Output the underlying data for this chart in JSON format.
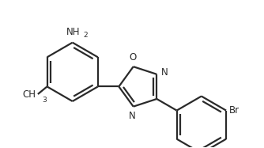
{
  "bg_color": "#ffffff",
  "bond_color": "#2a2a2a",
  "label_color": "#000000",
  "line_width": 1.6,
  "font_size_label": 8.5,
  "font_size_sub": 6.5,
  "figsize": [
    3.34,
    1.87
  ],
  "dpi": 100,
  "xlim": [
    0.0,
    5.2
  ],
  "ylim": [
    0.5,
    4.0
  ]
}
